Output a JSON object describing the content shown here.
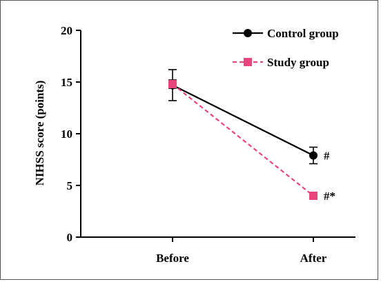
{
  "chart_data": {
    "type": "line",
    "categories": [
      "Before",
      "After"
    ],
    "ylabel": "NIHSS score (points)",
    "xlabel": "",
    "ylim": [
      0,
      20
    ],
    "yticks": [
      0,
      5,
      10,
      15,
      20
    ],
    "grid": false,
    "legend_position": "top-right",
    "series": [
      {
        "name": "Control group",
        "values": [
          14.7,
          7.9
        ],
        "error": [
          1.5,
          0.8
        ],
        "marker": "circle",
        "line": "solid",
        "color": "#000000",
        "annotations": [
          "",
          "#"
        ]
      },
      {
        "name": "Study group",
        "values": [
          14.8,
          4.0
        ],
        "error": [
          0.4,
          0.3
        ],
        "marker": "square",
        "line": "dashed",
        "color": "#e8457c",
        "annotations": [
          "",
          "#*"
        ]
      }
    ]
  }
}
